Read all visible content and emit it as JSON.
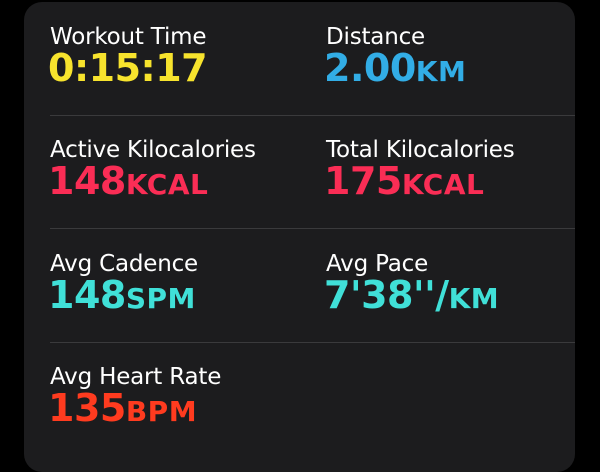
{
  "colors": {
    "yellow": "#f7e32d",
    "blue": "#32ade6",
    "pink": "#fa2d55",
    "cyan": "#40e0d8",
    "orange": "#ff3b1f"
  },
  "stats": [
    {
      "label": "Workout Time",
      "value": "0:15:17",
      "unit": "",
      "color": "#f7e32d"
    },
    {
      "label": "Distance",
      "value": "2.00",
      "unit": "KM",
      "color": "#32ade6"
    },
    {
      "label": "Active Kilocalories",
      "value": "148",
      "unit": "KCAL",
      "color": "#fa2d55"
    },
    {
      "label": "Total Kilocalories",
      "value": "175",
      "unit": "KCAL",
      "color": "#fa2d55"
    },
    {
      "label": "Avg Cadence",
      "value": "148",
      "unit": "SPM",
      "color": "#40e0d8"
    },
    {
      "label": "Avg Pace",
      "value": "7'38''/",
      "unit": "KM",
      "color": "#40e0d8"
    },
    {
      "label": "Avg Heart Rate",
      "value": "135",
      "unit": "BPM",
      "color": "#ff3b1f"
    }
  ]
}
